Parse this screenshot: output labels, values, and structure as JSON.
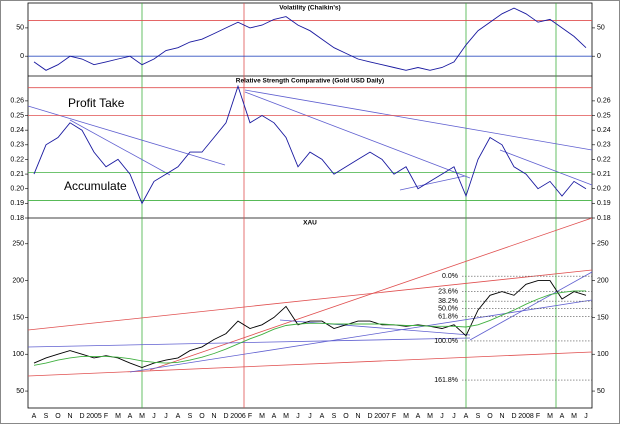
{
  "chart_data": [
    {
      "type": "line",
      "title": "Volatility (Chaikin's)",
      "ylim": [
        -35,
        94
      ],
      "yticks": [
        0,
        50
      ],
      "hlines": [
        {
          "value": 63,
          "color": "#e05050"
        },
        {
          "value": 0,
          "color": "#3050c0"
        }
      ],
      "series": [
        {
          "color": "#1a1aa0",
          "values": [
            -10,
            -25,
            -15,
            0,
            -5,
            -15,
            -10,
            -5,
            0,
            -15,
            -5,
            10,
            15,
            25,
            30,
            40,
            50,
            60,
            50,
            55,
            65,
            70,
            55,
            45,
            30,
            15,
            5,
            -5,
            -10,
            -15,
            -20,
            -25,
            -20,
            -25,
            -20,
            -10,
            20,
            45,
            60,
            75,
            85,
            75,
            60,
            65,
            50,
            35,
            15
          ]
        }
      ]
    },
    {
      "type": "line",
      "title": "Relative Strength Comparative (Gold USD Daily)",
      "ylim": [
        0.18,
        0.277
      ],
      "yticks": [
        0.18,
        0.19,
        {
          "value": 0.2,
          "label": "0.20"
        },
        0.21,
        0.22,
        0.23,
        0.24,
        0.25,
        0.26
      ],
      "hlines": [
        {
          "value": 0.269,
          "color": "#e05050"
        },
        {
          "value": 0.25,
          "color": "#e05050"
        },
        {
          "value": 0.211,
          "color": "#40b040"
        },
        {
          "value": 0.192,
          "color": "#40b040"
        }
      ],
      "annotations": [
        "Profit Take",
        "Accumulate"
      ],
      "series": [
        {
          "color": "#1a1aa0",
          "values": [
            0.21,
            0.23,
            0.235,
            0.245,
            0.24,
            0.225,
            0.215,
            0.22,
            0.21,
            0.19,
            0.205,
            0.21,
            0.215,
            0.225,
            0.225,
            0.235,
            0.245,
            0.27,
            0.245,
            0.25,
            0.245,
            0.235,
            0.215,
            0.225,
            0.22,
            0.21,
            0.215,
            0.22,
            0.225,
            0.22,
            0.21,
            0.215,
            0.2,
            0.205,
            0.21,
            0.215,
            0.195,
            0.22,
            0.235,
            0.23,
            0.215,
            0.21,
            0.2,
            0.205,
            0.195,
            0.205,
            0.2
          ]
        }
      ]
    },
    {
      "type": "line",
      "title": "XAU",
      "ylim": [
        27,
        285
      ],
      "yticks": [
        50,
        100,
        150,
        200,
        250
      ],
      "categories": [
        "A",
        "S",
        "O",
        "N",
        "D",
        "2005",
        "F",
        "M",
        "A",
        "M",
        "J",
        "J",
        "A",
        "S",
        "O",
        "N",
        "D",
        "2006",
        "F",
        "M",
        "A",
        "M",
        "J",
        "J",
        "A",
        "S",
        "O",
        "N",
        "D",
        "2007",
        "F",
        "M",
        "A",
        "M",
        "J",
        "J",
        "A",
        "S",
        "O",
        "N",
        "D",
        "2008",
        "F",
        "M",
        "A",
        "M",
        "J"
      ],
      "fib_levels": [
        {
          "label": "0.0%",
          "value": 206
        },
        {
          "label": "23.6%",
          "value": 185
        },
        {
          "label": "38.2%",
          "value": 172
        },
        {
          "label": "50.0%",
          "value": 162
        },
        {
          "label": "61.8%",
          "value": 151
        },
        {
          "label": "100.0%",
          "value": 118
        },
        {
          "label": "161.8%",
          "value": 65
        }
      ],
      "series": [
        {
          "color": "#000000",
          "values": [
            88,
            95,
            100,
            105,
            100,
            95,
            98,
            95,
            88,
            82,
            88,
            92,
            95,
            105,
            110,
            120,
            128,
            145,
            135,
            140,
            150,
            165,
            140,
            145,
            145,
            135,
            140,
            145,
            145,
            140,
            140,
            138,
            140,
            138,
            135,
            140,
            125,
            160,
            180,
            185,
            180,
            195,
            200,
            200,
            175,
            185,
            180
          ]
        },
        {
          "color": "#40b040",
          "values": [
            85,
            88,
            92,
            95,
            97,
            97,
            97,
            96,
            94,
            91,
            89,
            88,
            89,
            92,
            96,
            101,
            107,
            114,
            121,
            127,
            134,
            139,
            141,
            142,
            142,
            141,
            141,
            141,
            141,
            141,
            140,
            139,
            139,
            138,
            138,
            138,
            137,
            140,
            146,
            153,
            160,
            168,
            175,
            181,
            184,
            186,
            186
          ]
        }
      ]
    }
  ]
}
